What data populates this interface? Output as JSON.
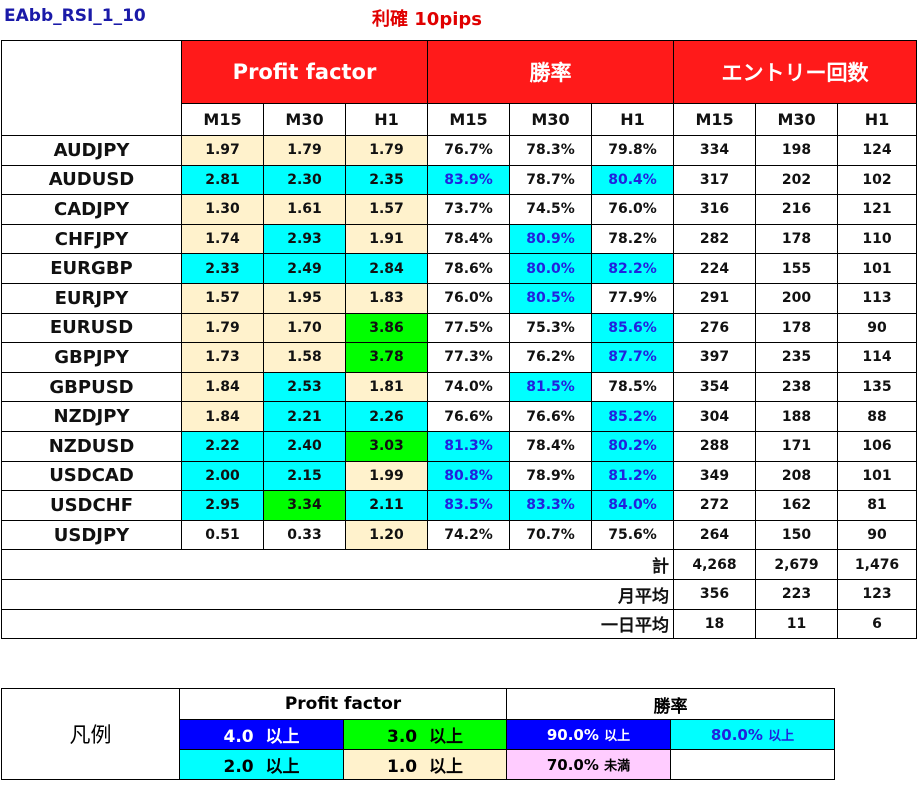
{
  "title": "EAbb_RSI_1_10",
  "subtitle": "利確 10pips",
  "headers": {
    "profit_factor": "Profit factor",
    "win_rate": "勝率",
    "entries": "エントリー回数"
  },
  "timeframes": [
    "M15",
    "M30",
    "H1"
  ],
  "rows": [
    {
      "pair": "AUDJPY",
      "pf": [
        "1.97",
        "1.79",
        "1.79"
      ],
      "pf_c": [
        "tan",
        "tan",
        "tan"
      ],
      "wr": [
        "76.7%",
        "78.3%",
        "79.8%"
      ],
      "wr_c": [
        "",
        "",
        ""
      ],
      "cnt": [
        "334",
        "198",
        "124"
      ]
    },
    {
      "pair": "AUDUSD",
      "pf": [
        "2.81",
        "2.30",
        "2.35"
      ],
      "pf_c": [
        "cyan",
        "cyan",
        "cyan"
      ],
      "wr": [
        "83.9%",
        "78.7%",
        "80.4%"
      ],
      "wr_c": [
        "cyan",
        "",
        "cyan"
      ],
      "cnt": [
        "317",
        "202",
        "102"
      ]
    },
    {
      "pair": "CADJPY",
      "pf": [
        "1.30",
        "1.61",
        "1.57"
      ],
      "pf_c": [
        "tan",
        "tan",
        "tan"
      ],
      "wr": [
        "73.7%",
        "74.5%",
        "76.0%"
      ],
      "wr_c": [
        "",
        "",
        ""
      ],
      "cnt": [
        "316",
        "216",
        "121"
      ]
    },
    {
      "pair": "CHFJPY",
      "pf": [
        "1.74",
        "2.93",
        "1.91"
      ],
      "pf_c": [
        "tan",
        "cyan",
        "tan"
      ],
      "wr": [
        "78.4%",
        "80.9%",
        "78.2%"
      ],
      "wr_c": [
        "",
        "cyan",
        ""
      ],
      "cnt": [
        "282",
        "178",
        "110"
      ]
    },
    {
      "pair": "EURGBP",
      "pf": [
        "2.33",
        "2.49",
        "2.84"
      ],
      "pf_c": [
        "cyan",
        "cyan",
        "cyan"
      ],
      "wr": [
        "78.6%",
        "80.0%",
        "82.2%"
      ],
      "wr_c": [
        "",
        "cyan",
        "cyan"
      ],
      "cnt": [
        "224",
        "155",
        "101"
      ]
    },
    {
      "pair": "EURJPY",
      "pf": [
        "1.57",
        "1.95",
        "1.83"
      ],
      "pf_c": [
        "tan",
        "tan",
        "tan"
      ],
      "wr": [
        "76.0%",
        "80.5%",
        "77.9%"
      ],
      "wr_c": [
        "",
        "cyan",
        ""
      ],
      "cnt": [
        "291",
        "200",
        "113"
      ]
    },
    {
      "pair": "EURUSD",
      "pf": [
        "1.79",
        "1.70",
        "3.86"
      ],
      "pf_c": [
        "tan",
        "tan",
        "green"
      ],
      "wr": [
        "77.5%",
        "75.3%",
        "85.6%"
      ],
      "wr_c": [
        "",
        "",
        "cyan"
      ],
      "cnt": [
        "276",
        "178",
        "90"
      ]
    },
    {
      "pair": "GBPJPY",
      "pf": [
        "1.73",
        "1.58",
        "3.78"
      ],
      "pf_c": [
        "tan",
        "tan",
        "green"
      ],
      "wr": [
        "77.3%",
        "76.2%",
        "87.7%"
      ],
      "wr_c": [
        "",
        "",
        "cyan"
      ],
      "cnt": [
        "397",
        "235",
        "114"
      ]
    },
    {
      "pair": "GBPUSD",
      "pf": [
        "1.84",
        "2.53",
        "1.81"
      ],
      "pf_c": [
        "tan",
        "cyan",
        "tan"
      ],
      "wr": [
        "74.0%",
        "81.5%",
        "78.5%"
      ],
      "wr_c": [
        "",
        "cyan",
        ""
      ],
      "cnt": [
        "354",
        "238",
        "135"
      ]
    },
    {
      "pair": "NZDJPY",
      "pf": [
        "1.84",
        "2.21",
        "2.26"
      ],
      "pf_c": [
        "tan",
        "cyan",
        "cyan"
      ],
      "wr": [
        "76.6%",
        "76.6%",
        "85.2%"
      ],
      "wr_c": [
        "",
        "",
        "cyan"
      ],
      "cnt": [
        "304",
        "188",
        "88"
      ]
    },
    {
      "pair": "NZDUSD",
      "pf": [
        "2.22",
        "2.40",
        "3.03"
      ],
      "pf_c": [
        "cyan",
        "cyan",
        "green"
      ],
      "wr": [
        "81.3%",
        "78.4%",
        "80.2%"
      ],
      "wr_c": [
        "cyan",
        "",
        "cyan"
      ],
      "cnt": [
        "288",
        "171",
        "106"
      ]
    },
    {
      "pair": "USDCAD",
      "pf": [
        "2.00",
        "2.15",
        "1.99"
      ],
      "pf_c": [
        "cyan",
        "cyan",
        "tan"
      ],
      "wr": [
        "80.8%",
        "78.9%",
        "81.2%"
      ],
      "wr_c": [
        "cyan",
        "",
        "cyan"
      ],
      "cnt": [
        "349",
        "208",
        "101"
      ]
    },
    {
      "pair": "USDCHF",
      "pf": [
        "2.95",
        "3.34",
        "2.11"
      ],
      "pf_c": [
        "cyan",
        "green",
        "cyan"
      ],
      "wr": [
        "83.5%",
        "83.3%",
        "84.0%"
      ],
      "wr_c": [
        "cyan",
        "cyan",
        "cyan"
      ],
      "cnt": [
        "272",
        "162",
        "81"
      ]
    },
    {
      "pair": "USDJPY",
      "pf": [
        "0.51",
        "0.33",
        "1.20"
      ],
      "pf_c": [
        "",
        "",
        "tan"
      ],
      "wr": [
        "74.2%",
        "70.7%",
        "75.6%"
      ],
      "wr_c": [
        "",
        "",
        ""
      ],
      "cnt": [
        "264",
        "150",
        "90"
      ]
    }
  ],
  "summary": [
    {
      "label": "計",
      "values": [
        "4,268",
        "2,679",
        "1,476"
      ]
    },
    {
      "label": "月平均",
      "values": [
        "356",
        "223",
        "123"
      ]
    },
    {
      "label": "一日平均",
      "values": [
        "18",
        "11",
        "6"
      ]
    }
  ],
  "legend": {
    "title": "凡例",
    "pf_header": "Profit factor",
    "wr_header": "勝率",
    "pf_items": [
      {
        "value": "4.0",
        "suffix": "以上",
        "color": "#0000ff"
      },
      {
        "value": "3.0",
        "suffix": "以上",
        "color": "#00ff00"
      },
      {
        "value": "2.0",
        "suffix": "以上",
        "color": "#00ffff"
      },
      {
        "value": "1.0",
        "suffix": "以上",
        "color": "#fff2cc"
      }
    ],
    "wr_items": [
      {
        "value": "90.0%",
        "suffix": "以上",
        "color": "#0000ff"
      },
      {
        "value": "80.0%",
        "suffix": "以上",
        "color": "#00ffff"
      },
      {
        "value": "70.0%",
        "suffix": "未満",
        "color": "#ffccff"
      }
    ]
  }
}
